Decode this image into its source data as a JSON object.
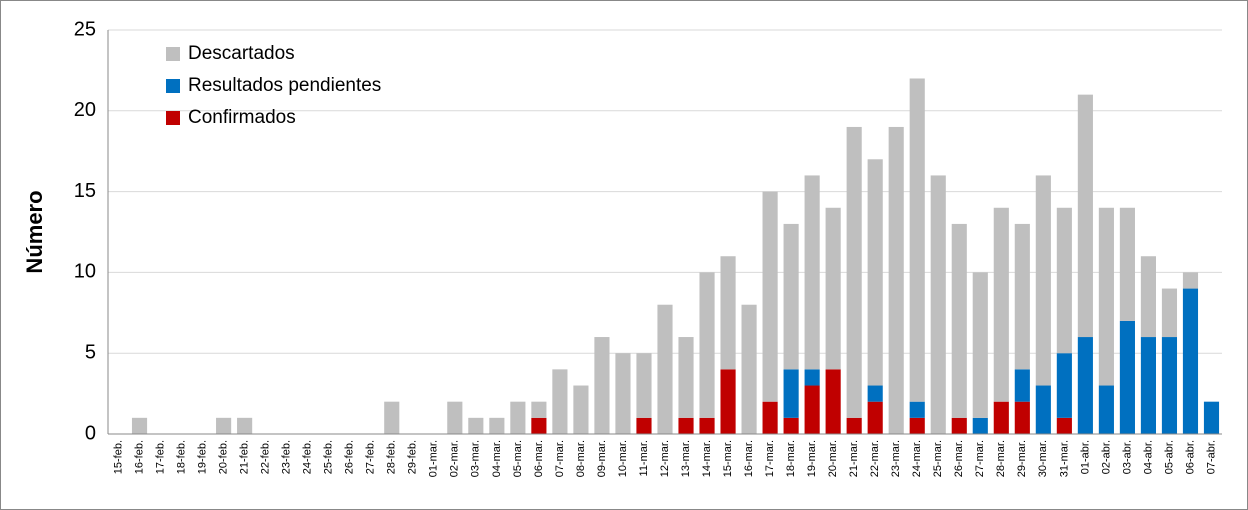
{
  "chart_data": {
    "type": "stacked-bar",
    "y_label": "Número",
    "categories": [
      "15-feb.",
      "16-feb.",
      "17-feb.",
      "18-feb.",
      "19-feb.",
      "20-feb.",
      "21-feb.",
      "22-feb.",
      "23-feb.",
      "24-feb.",
      "25-feb.",
      "26-feb.",
      "27-feb.",
      "28-feb.",
      "29-feb.",
      "01-mar.",
      "02-mar.",
      "03-mar.",
      "04-mar.",
      "05-mar.",
      "06-mar.",
      "07-mar.",
      "08-mar.",
      "09-mar.",
      "10-mar.",
      "11-mar.",
      "12-mar.",
      "13-mar.",
      "14-mar.",
      "15-mar.",
      "16-mar.",
      "17-mar.",
      "18-mar.",
      "19-mar.",
      "20-mar.",
      "21-mar.",
      "22-mar.",
      "23-mar.",
      "24-mar.",
      "25-mar.",
      "26-mar.",
      "27-mar.",
      "28-mar.",
      "29-mar.",
      "30-mar.",
      "31-mar.",
      "01-abr.",
      "02-abr.",
      "03-abr.",
      "04-abr.",
      "05-abr.",
      "06-abr.",
      "07-abr."
    ],
    "series": [
      {
        "name": "Descartados",
        "color": "#bfbfbf",
        "values": [
          0,
          1,
          0,
          0,
          0,
          1,
          1,
          0,
          0,
          0,
          0,
          0,
          0,
          2,
          0,
          0,
          2,
          1,
          1,
          2,
          1,
          4,
          3,
          6,
          5,
          4,
          8,
          5,
          9,
          7,
          8,
          13,
          9,
          12,
          10,
          18,
          14,
          19,
          20,
          16,
          12,
          9,
          12,
          9,
          13,
          9,
          15,
          11,
          7,
          5,
          3,
          1,
          0
        ]
      },
      {
        "name": "Resultados pendientes",
        "color": "#0070c0",
        "values": [
          0,
          0,
          0,
          0,
          0,
          0,
          0,
          0,
          0,
          0,
          0,
          0,
          0,
          0,
          0,
          0,
          0,
          0,
          0,
          0,
          0,
          0,
          0,
          0,
          0,
          0,
          0,
          0,
          0,
          0,
          0,
          0,
          3,
          1,
          0,
          0,
          1,
          0,
          1,
          0,
          0,
          1,
          0,
          2,
          3,
          4,
          6,
          3,
          7,
          6,
          6,
          9,
          2
        ]
      },
      {
        "name": "Confirmados",
        "color": "#c00000",
        "values": [
          0,
          0,
          0,
          0,
          0,
          0,
          0,
          0,
          0,
          0,
          0,
          0,
          0,
          0,
          0,
          0,
          0,
          0,
          0,
          0,
          1,
          0,
          0,
          0,
          0,
          1,
          0,
          1,
          1,
          4,
          0,
          2,
          1,
          3,
          4,
          1,
          2,
          0,
          1,
          0,
          1,
          0,
          2,
          2,
          0,
          1,
          0,
          0,
          0,
          0,
          0,
          0,
          0
        ]
      }
    ],
    "ylim": [
      0,
      25
    ],
    "yticks": [
      0,
      5,
      10,
      15,
      20,
      25
    ],
    "grid": true,
    "stack_order": "reverse",
    "legend": "top-left"
  }
}
